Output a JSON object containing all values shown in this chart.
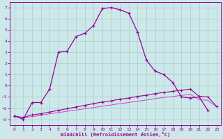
{
  "xlabel": "Windchill (Refroidissement éolien,°C)",
  "ylim": [
    -3.5,
    7.5
  ],
  "xlim": [
    -0.5,
    23.5
  ],
  "yticks": [
    -3,
    -2,
    -1,
    0,
    1,
    2,
    3,
    4,
    5,
    6,
    7
  ],
  "x_ticks": [
    0,
    1,
    2,
    3,
    4,
    5,
    6,
    7,
    8,
    9,
    10,
    11,
    12,
    13,
    14,
    15,
    16,
    17,
    18,
    19,
    20,
    21,
    22,
    23
  ],
  "bg_color": "#cce8e8",
  "grid_color": "#aacece",
  "line_color1": "#990099",
  "line_color2": "#cc44cc",
  "line1_x": [
    0,
    1,
    2,
    3,
    4,
    5,
    6,
    7,
    8,
    9,
    10,
    11,
    12,
    13,
    14,
    15,
    16,
    17,
    18,
    19,
    20,
    21,
    22
  ],
  "line1_y": [
    -2.7,
    -3.0,
    -1.5,
    -1.5,
    -0.3,
    3.0,
    3.1,
    4.4,
    4.7,
    5.4,
    6.9,
    7.0,
    6.8,
    6.5,
    4.8,
    2.3,
    1.3,
    1.0,
    0.3,
    -1.0,
    -1.1,
    -1.0,
    -2.2
  ],
  "line2_x": [
    0,
    1,
    2,
    3,
    4,
    5,
    6,
    7,
    8,
    9,
    10,
    11,
    12,
    13,
    14,
    15,
    16,
    17,
    18,
    19,
    20,
    21,
    22,
    23
  ],
  "line2_y": [
    -2.7,
    -2.85,
    -2.6,
    -2.5,
    -2.35,
    -2.2,
    -2.05,
    -1.9,
    -1.75,
    -1.6,
    -1.45,
    -1.35,
    -1.2,
    -1.1,
    -0.95,
    -0.85,
    -0.7,
    -0.6,
    -0.5,
    -0.4,
    -0.3,
    -0.95,
    -1.0,
    -1.85
  ],
  "line3_x": [
    0,
    1,
    2,
    3,
    4,
    5,
    6,
    7,
    8,
    9,
    10,
    11,
    12,
    13,
    14,
    15,
    16,
    17,
    18,
    19,
    20,
    21,
    22,
    23
  ],
  "line3_y": [
    -2.7,
    -2.9,
    -2.75,
    -2.65,
    -2.5,
    -2.4,
    -2.28,
    -2.17,
    -2.06,
    -1.95,
    -1.82,
    -1.72,
    -1.6,
    -1.5,
    -1.38,
    -1.28,
    -1.15,
    -1.05,
    -0.96,
    -0.86,
    -0.77,
    -1.25,
    -1.3,
    -1.9
  ]
}
